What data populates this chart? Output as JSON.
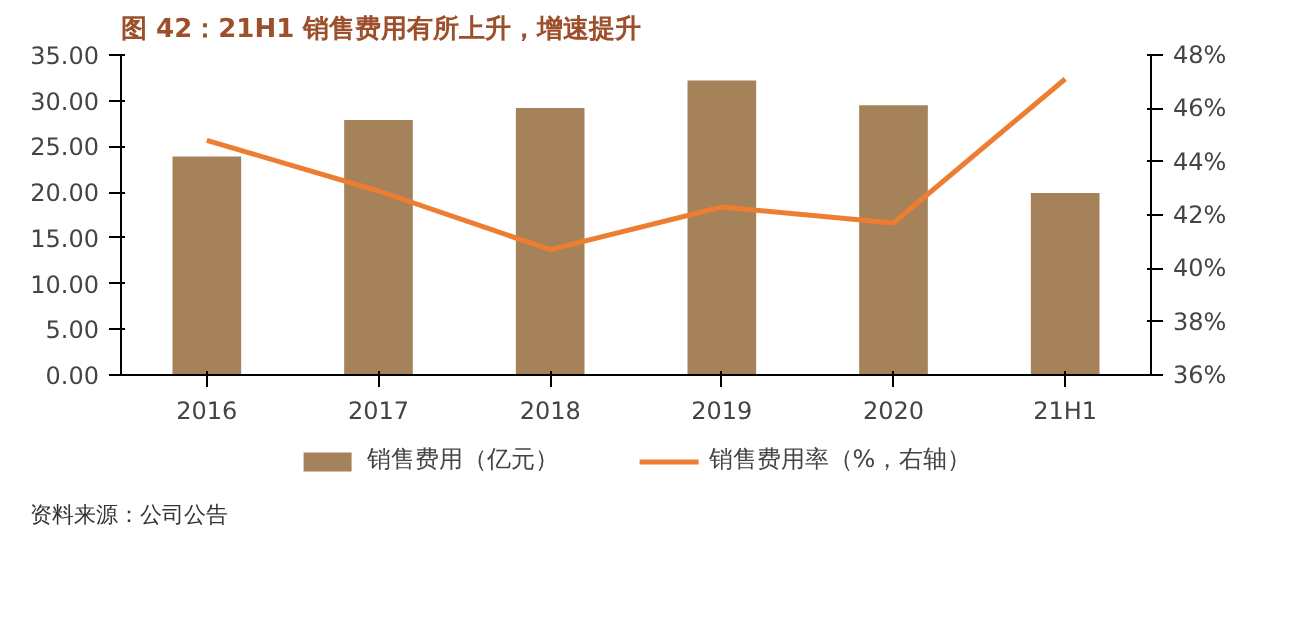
{
  "chart_data": {
    "type": "bar",
    "title": "图 42：21H1 销售费用有所上升，增速提升",
    "categories": [
      "2016",
      "2017",
      "2018",
      "2019",
      "2020",
      "21H1"
    ],
    "series": [
      {
        "name": "销售费用（亿元）",
        "color": "#a6825a",
        "values": [
          23.9,
          27.9,
          29.2,
          32.2,
          29.5,
          19.9
        ]
      },
      {
        "name": "销售费用率（%，右轴）",
        "type": "line",
        "axis": "y2",
        "color": "#ed7d31",
        "values": [
          44.8,
          42.9,
          40.7,
          42.3,
          41.7,
          47.1
        ]
      }
    ],
    "ylim": [
      0,
      35
    ],
    "yticks": [
      {
        "value": 0,
        "label": "0.00"
      },
      {
        "value": 5,
        "label": "5.00"
      },
      {
        "value": 10,
        "label": "10.00"
      },
      {
        "value": 15,
        "label": "15.00"
      },
      {
        "value": 20,
        "label": "20.00"
      },
      {
        "value": 25,
        "label": "25.00"
      },
      {
        "value": 30,
        "label": "30.00"
      },
      {
        "value": 35,
        "label": "35.00"
      }
    ],
    "y2lim": [
      36,
      48
    ],
    "y2ticks": [
      {
        "value": 36,
        "label": "36%"
      },
      {
        "value": 38,
        "label": "38%"
      },
      {
        "value": 40,
        "label": "40%"
      },
      {
        "value": 42,
        "label": "42%"
      },
      {
        "value": 44,
        "label": "44%"
      },
      {
        "value": 46,
        "label": "46%"
      },
      {
        "value": 48,
        "label": "48%"
      }
    ],
    "annotations": [
      "资料来源：公司公告"
    ],
    "legend": "bottom",
    "grid": false
  }
}
